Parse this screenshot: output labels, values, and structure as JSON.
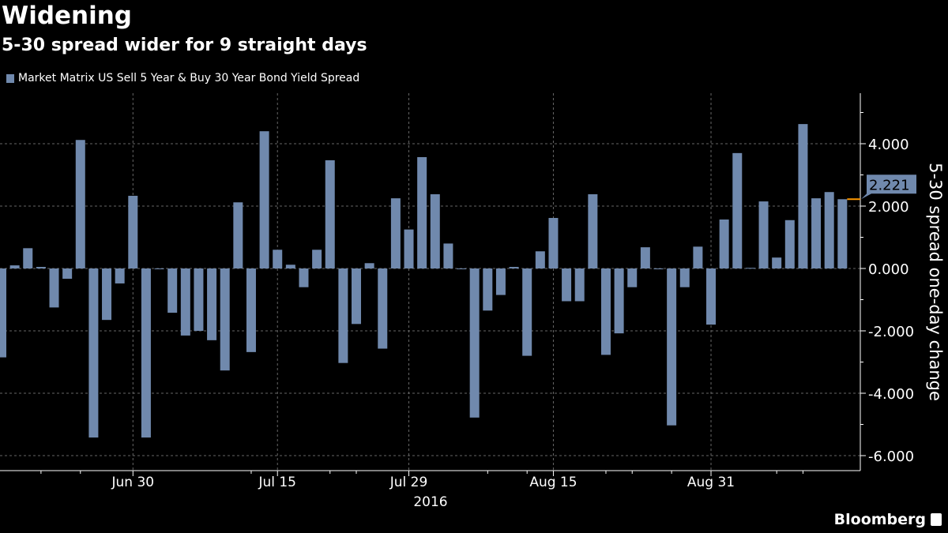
{
  "chart_data": {
    "type": "bar",
    "title": "Widening",
    "subtitle": "5-30 spread wider for 9 straight days",
    "ylabel": "5-30 spread one-day change",
    "xlabel": "2016",
    "ylim": [
      -6.5,
      5.5
    ],
    "yticks": [
      "-6.000",
      "-4.000",
      "-2.000",
      "0.000",
      "2.000",
      "4.000"
    ],
    "ytick_values": [
      -6,
      -4,
      -2,
      0,
      2,
      4
    ],
    "xticks": [
      {
        "label": "Jun 30",
        "index": 10
      },
      {
        "label": "Jul 15",
        "index": 21
      },
      {
        "label": "Jul 29",
        "index": 31
      },
      {
        "label": "Aug 15",
        "index": 42
      },
      {
        "label": "Aug 31",
        "index": 54
      }
    ],
    "grid": true,
    "legend_position": "top-left",
    "series": [
      {
        "name": "Market Matrix US Sell 5 Year & Buy 30 Year Bond Yield Spread",
        "color": "#7089ad",
        "values": [
          -2.85,
          0.1,
          0.65,
          0.05,
          -1.25,
          -0.33,
          4.12,
          -5.42,
          -1.65,
          -0.48,
          2.33,
          -5.42,
          -0.02,
          -1.42,
          -2.15,
          -2.0,
          -2.3,
          -3.27,
          2.12,
          -2.68,
          4.4,
          0.6,
          0.12,
          -0.6,
          0.6,
          3.47,
          -3.03,
          -1.78,
          0.17,
          -2.57,
          2.25,
          1.25,
          3.57,
          2.38,
          0.8,
          -0.02,
          -4.78,
          -1.35,
          -0.85,
          0.05,
          -2.8,
          0.55,
          1.62,
          -1.05,
          -1.05,
          2.38,
          -2.77,
          -2.08,
          -0.6,
          0.68,
          -0.02,
          -5.03,
          -0.6,
          0.7,
          -1.8,
          1.57,
          3.7,
          0.02,
          2.15,
          0.35,
          1.55,
          4.63,
          2.25,
          2.45,
          2.221
        ]
      }
    ],
    "last_value_label": "2.221",
    "last_value_color": "#ff9900"
  },
  "branding": {
    "logo": "Bloomberg"
  }
}
